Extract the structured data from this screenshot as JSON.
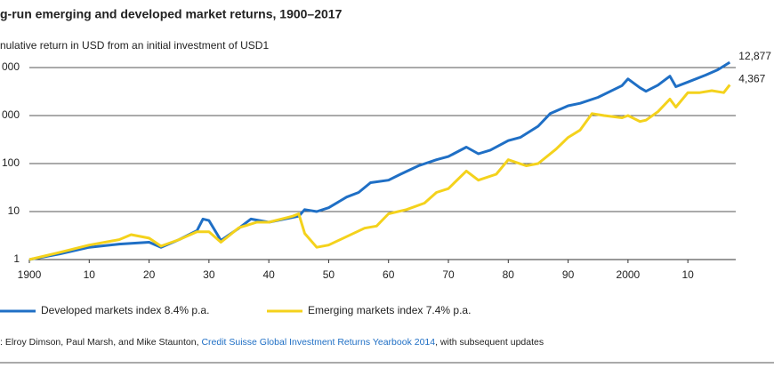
{
  "chart_data": {
    "type": "line",
    "title": "g-run emerging and developed market returns, 1900–2017",
    "subtitle": "nulative return in USD from an initial investment  of USD1",
    "source": {
      "prefix": ": Elroy Dimson, Paul Marsh, and Mike Staunton, ",
      "link": "Credit Suisse Global Investment Returns Yearbook 2014",
      "suffix": ", with subsequent updates"
    },
    "log_scale": true,
    "grid": true,
    "legend": "bottom",
    "xlim": [
      1900,
      2018
    ],
    "xticks": [
      1900,
      {
        "value": 1910,
        "label": "10"
      },
      {
        "value": 1920,
        "label": "20"
      },
      {
        "value": 1930,
        "label": "30"
      },
      {
        "value": 1940,
        "label": "40"
      },
      {
        "value": 1950,
        "label": "50"
      },
      {
        "value": 1960,
        "label": "60"
      },
      {
        "value": 1970,
        "label": "70"
      },
      {
        "value": 1980,
        "label": "80"
      },
      {
        "value": 1990,
        "label": "90"
      },
      2000,
      {
        "value": 2010,
        "label": "10"
      }
    ],
    "ylim": [
      1,
      10000
    ],
    "yticks": [
      1,
      10,
      100,
      {
        "value": 1000,
        "label": "000"
      },
      {
        "value": 10000,
        "label": "000"
      }
    ],
    "series": [
      {
        "name": "Developed markets index 8.4% p.a.",
        "color": "#1f6fc5",
        "end_label": "12,877",
        "x": [
          1900,
          1905,
          1910,
          1915,
          1920,
          1922,
          1925,
          1928,
          1929,
          1930,
          1932,
          1935,
          1937,
          1940,
          1945,
          1946,
          1948,
          1950,
          1953,
          1955,
          1957,
          1960,
          1962,
          1965,
          1968,
          1970,
          1973,
          1975,
          1977,
          1980,
          1982,
          1985,
          1987,
          1990,
          1992,
          1995,
          1999,
          2000,
          2002,
          2003,
          2005,
          2007,
          2008,
          2010,
          2013,
          2015,
          2017
        ],
        "values": [
          1,
          1.3,
          1.8,
          2.1,
          2.3,
          1.8,
          2.6,
          4,
          7,
          6.5,
          2.5,
          4.5,
          7,
          6,
          8,
          11,
          10,
          12,
          20,
          25,
          40,
          45,
          60,
          90,
          120,
          140,
          220,
          160,
          190,
          300,
          350,
          600,
          1100,
          1600,
          1800,
          2400,
          4200,
          5800,
          3800,
          3200,
          4300,
          6600,
          4000,
          5000,
          7000,
          9000,
          12877
        ]
      },
      {
        "name": "Emerging markets index 7.4% p.a.",
        "color": "#f4d21c",
        "end_label": "4,367",
        "x": [
          1900,
          1905,
          1910,
          1915,
          1917,
          1920,
          1922,
          1925,
          1928,
          1930,
          1932,
          1935,
          1938,
          1940,
          1944,
          1945,
          1946,
          1948,
          1950,
          1953,
          1956,
          1958,
          1960,
          1963,
          1966,
          1968,
          1970,
          1973,
          1975,
          1978,
          1980,
          1983,
          1985,
          1988,
          1990,
          1992,
          1994,
          1996,
          1999,
          2000,
          2002,
          2003,
          2005,
          2007,
          2008,
          2010,
          2012,
          2014,
          2016,
          2017
        ],
        "values": [
          1,
          1.4,
          2,
          2.6,
          3.3,
          2.8,
          1.9,
          2.6,
          3.8,
          3.8,
          2.3,
          4.6,
          6,
          6,
          8,
          9,
          3.5,
          1.8,
          2,
          3,
          4.5,
          5,
          9,
          11,
          15,
          25,
          30,
          70,
          45,
          60,
          120,
          90,
          100,
          200,
          350,
          500,
          1100,
          1000,
          900,
          1000,
          750,
          800,
          1200,
          2200,
          1500,
          3000,
          3000,
          3300,
          3000,
          4367
        ]
      }
    ]
  }
}
